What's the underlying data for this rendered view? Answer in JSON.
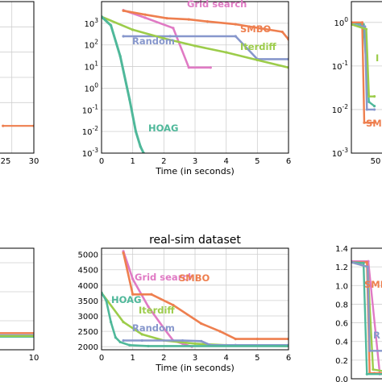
{
  "colors": {
    "hoag": "#4fb89a",
    "smbo": "#ee7f4f",
    "iterdiff": "#9ccc4a",
    "random": "#8797cc",
    "grid_search": "#e07ac4"
  },
  "chart_data": [
    {
      "panel": "top-left (partial)",
      "type": "line",
      "title": "",
      "xlabel": "",
      "ylabel": "",
      "x_ticks": [
        "25",
        "30"
      ],
      "series": [
        {
          "key": "smbo",
          "x": [
            16,
            30
          ],
          "y": [
            0.00012,
            0.00012
          ]
        }
      ]
    },
    {
      "panel": "top-middle",
      "type": "line",
      "title": "",
      "xlabel": "Time (in seconds)",
      "ylabel": "",
      "xlim": [
        0,
        6
      ],
      "ylim": [
        0.001,
        10000
      ],
      "yscale": "log",
      "x_ticks": [
        "0",
        "1",
        "2",
        "3",
        "4",
        "5",
        "6"
      ],
      "y_ticks": [
        "10^-3",
        "10^-2",
        "10^-1",
        "10^0",
        "10^1",
        "10^2",
        "10^3"
      ],
      "series": [
        {
          "key": "grid_search",
          "name": "Grid search",
          "x": [
            0.7,
            1.4,
            2.3,
            2.8,
            3.5
          ],
          "y": [
            4000,
            1800,
            600,
            9,
            9
          ]
        },
        {
          "key": "smbo",
          "name": "SMBO",
          "x": [
            0.7,
            1.4,
            2.1,
            2.8,
            3.4,
            4.3,
            5.8,
            6.0
          ],
          "y": [
            3800,
            2500,
            1700,
            1500,
            1200,
            900,
            400,
            180
          ]
        },
        {
          "key": "random",
          "name": "Random",
          "x": [
            0.7,
            2.2,
            4.3,
            5.0,
            6.0
          ],
          "y": [
            250,
            250,
            250,
            22,
            22
          ]
        },
        {
          "key": "iterdiff",
          "name": "Iterdiff",
          "x": [
            0.0,
            1.0,
            2.0,
            3.0,
            4.0,
            5.0,
            6.0
          ],
          "y": [
            2000,
            500,
            200,
            90,
            45,
            20,
            9
          ]
        },
        {
          "key": "hoag",
          "name": "HOAG",
          "x": [
            0.0,
            0.3,
            0.6,
            0.9,
            1.1,
            1.25,
            1.35
          ],
          "y": [
            2000,
            800,
            30,
            0.3,
            0.01,
            0.002,
            0.001
          ]
        }
      ]
    },
    {
      "panel": "top-right (partial)",
      "type": "line",
      "title": "",
      "xlabel": "",
      "ylabel": "",
      "yscale": "log",
      "y_ticks": [
        "10^0",
        "10^-1",
        "10^-2",
        "10^-3"
      ],
      "x_ticks": [
        "50"
      ],
      "series": [
        {
          "key": "hoag",
          "x": [
            0,
            1.8,
            2.6,
            3.4
          ],
          "y": [
            1.0,
            0.9,
            0.015,
            0.012
          ]
        },
        {
          "key": "smbo",
          "x": [
            0,
            1.6,
            1.9,
            2.5,
            3.4
          ],
          "y": [
            1.0,
            1.0,
            0.005,
            0.005,
            0.005
          ]
        },
        {
          "key": "random",
          "x": [
            0,
            2.0,
            2.3,
            3.4
          ],
          "y": [
            0.9,
            0.8,
            0.01,
            0.01
          ]
        },
        {
          "key": "iterdiff",
          "x": [
            0,
            2.2,
            2.6,
            3.4
          ],
          "y": [
            0.9,
            0.7,
            0.02,
            0.02
          ]
        }
      ],
      "labels": [
        "SMB"
      ]
    },
    {
      "panel": "bottom-left (partial)",
      "type": "line",
      "title": "",
      "xlabel": "",
      "ylabel": "",
      "x_ticks": [
        "10"
      ],
      "series": [
        {
          "key": "smbo",
          "x": [
            0,
            10
          ],
          "y": [
            0.23,
            0.23
          ]
        },
        {
          "key": "random",
          "x": [
            0,
            10
          ],
          "y": [
            0.2,
            0.2
          ]
        },
        {
          "key": "hoag",
          "x": [
            0,
            10
          ],
          "y": [
            0.18,
            0.18
          ]
        },
        {
          "key": "iterdiff",
          "x": [
            0,
            10
          ],
          "y": [
            0.19,
            0.19
          ]
        }
      ]
    },
    {
      "panel": "bottom-middle",
      "type": "line",
      "title": "real-sim dataset",
      "xlabel": "Time (in seconds)",
      "ylabel": "",
      "xlim": [
        0,
        6
      ],
      "ylim": [
        1900,
        5200
      ],
      "x_ticks": [
        "0",
        "1",
        "2",
        "3",
        "4",
        "5",
        "6"
      ],
      "y_ticks": [
        "2000",
        "2500",
        "3000",
        "3500",
        "4000",
        "4500",
        "5000"
      ],
      "series": [
        {
          "key": "grid_search",
          "name": "Grid search",
          "x": [
            0.7,
            1.0,
            1.5,
            2.0,
            2.3,
            2.6,
            2.9
          ],
          "y": [
            5100,
            4200,
            3300,
            2600,
            2200,
            2100,
            2000
          ]
        },
        {
          "key": "smbo",
          "name": "SMBO",
          "x": [
            0.7,
            1.0,
            1.6,
            2.3,
            3.2,
            3.8,
            4.3,
            5.0,
            6.0
          ],
          "y": [
            5050,
            3700,
            3700,
            3350,
            2750,
            2500,
            2250,
            2250,
            2250
          ]
        },
        {
          "key": "iterdiff",
          "name": "Iterdiff",
          "x": [
            0.0,
            0.7,
            1.3,
            2.0,
            3.0,
            4.0,
            5.0,
            6.0
          ],
          "y": [
            3750,
            2800,
            2400,
            2200,
            2100,
            2050,
            2030,
            2020
          ]
        },
        {
          "key": "random",
          "name": "Random",
          "x": [
            0.7,
            1.3,
            2.6,
            3.2,
            3.5,
            4.3,
            6.0
          ],
          "y": [
            2200,
            2200,
            2200,
            2180,
            2050,
            2050,
            2050
          ]
        },
        {
          "key": "hoag",
          "name": "HOAG",
          "x": [
            0.0,
            0.15,
            0.3,
            0.45,
            0.6,
            0.9,
            1.5,
            6.0
          ],
          "y": [
            3750,
            3500,
            2800,
            2300,
            2150,
            2050,
            2020,
            2020
          ]
        }
      ]
    },
    {
      "panel": "bottom-right (partial)",
      "type": "line",
      "title": "",
      "xlabel": "",
      "ylabel": "",
      "ylim": [
        0.0,
        1.4
      ],
      "y_ticks": [
        "0.0",
        "0.2",
        "0.4",
        "0.6",
        "0.8",
        "1.0",
        "1.2",
        "1.4"
      ],
      "series": [
        {
          "key": "grid_search",
          "x": [
            0,
            2.5,
            4.2,
            4.8
          ],
          "y": [
            1.26,
            1.26,
            0.05,
            0.05
          ]
        },
        {
          "key": "smbo",
          "x": [
            0,
            2.3,
            2.7,
            3.4,
            4.8
          ],
          "y": [
            1.25,
            1.25,
            0.06,
            0.06,
            0.06
          ]
        },
        {
          "key": "hoag",
          "x": [
            0,
            1.8,
            2.3,
            4.8
          ],
          "y": [
            1.25,
            1.24,
            0.05,
            0.05
          ]
        },
        {
          "key": "iterdiff",
          "x": [
            0,
            2.4,
            3.2,
            4.8
          ],
          "y": [
            1.25,
            1.2,
            0.1,
            0.08
          ]
        },
        {
          "key": "random",
          "x": [
            0,
            2.4,
            2.7,
            4.8
          ],
          "y": [
            1.25,
            1.2,
            0.3,
            0.3
          ]
        }
      ],
      "labels": [
        "SMB",
        "R"
      ]
    }
  ]
}
